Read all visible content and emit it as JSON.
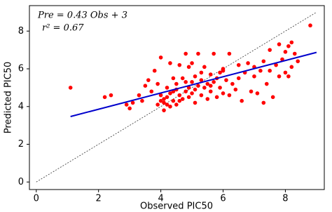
{
  "chart_data": {
    "type": "scatter",
    "xlabel": "Observed PIC50",
    "ylabel": "Predicted PIC50",
    "annotations": [
      "Pre = 0.43 Obs + 3",
      "r² = 0.67"
    ],
    "xlim": [
      -0.22,
      9.25
    ],
    "ylim": [
      -0.4,
      9.35
    ],
    "xticks": [
      0,
      2,
      4,
      6,
      8
    ],
    "yticks": [
      0,
      2,
      4,
      6,
      8
    ],
    "grid": false,
    "points": {
      "color": "#ff0000",
      "x": [
        1.1,
        2.2,
        2.4,
        2.9,
        3.0,
        3.1,
        3.3,
        3.4,
        3.5,
        3.6,
        3.7,
        3.8,
        3.9,
        4.0,
        4.0,
        4.1,
        4.1,
        4.2,
        4.2,
        4.3,
        4.3,
        4.4,
        4.4,
        4.5,
        4.5,
        4.6,
        4.6,
        4.7,
        4.7,
        4.8,
        4.8,
        4.9,
        4.9,
        5.0,
        5.0,
        5.0,
        5.1,
        5.1,
        5.2,
        5.2,
        5.3,
        5.3,
        5.4,
        5.4,
        5.5,
        5.5,
        5.6,
        5.6,
        5.7,
        5.8,
        5.8,
        5.9,
        5.9,
        6.0,
        6.0,
        6.0,
        6.1,
        6.2,
        6.2,
        6.3,
        6.4,
        6.5,
        6.5,
        6.6,
        6.7,
        6.8,
        6.9,
        7.0,
        7.0,
        7.1,
        7.2,
        7.3,
        7.3,
        7.4,
        7.5,
        7.5,
        7.6,
        7.7,
        7.8,
        7.8,
        7.9,
        8.0,
        8.0,
        8.1,
        8.1,
        8.2,
        8.2,
        8.3,
        8.4,
        8.8,
        4.1,
        4.2,
        4.3,
        4.5,
        4.6,
        4.8,
        5.1,
        5.3,
        5.6,
        4.4,
        4.9,
        5.7,
        3.9,
        4.0
      ],
      "y": [
        5.0,
        4.5,
        4.6,
        4.1,
        3.9,
        4.2,
        4.6,
        4.3,
        5.1,
        5.4,
        4.8,
        5.9,
        4.1,
        4.3,
        4.6,
        3.8,
        4.2,
        4.5,
        5.0,
        4.0,
        6.3,
        4.3,
        4.8,
        5.2,
        4.1,
        6.2,
        4.6,
        4.4,
        5.5,
        6.8,
        4.8,
        4.5,
        5.0,
        6.3,
        4.7,
        5.3,
        4.2,
        4.9,
        6.8,
        5.1,
        4.6,
        5.4,
        5.0,
        6.1,
        4.4,
        5.2,
        5.7,
        4.8,
        5.3,
        5.5,
        4.5,
        5.0,
        5.8,
        5.9,
        6.0,
        4.7,
        5.4,
        4.6,
        6.8,
        5.2,
        4.9,
        5.5,
        6.2,
        4.3,
        5.8,
        6.3,
        4.8,
        5.6,
        6.1,
        4.7,
        5.9,
        4.2,
        6.4,
        5.2,
        5.9,
        7.0,
        4.5,
        6.2,
        5.6,
        7.3,
        6.5,
        6.9,
        5.8,
        5.6,
        7.2,
        6.1,
        7.4,
        6.8,
        6.4,
        8.3,
        4.4,
        4.1,
        4.7,
        4.9,
        4.3,
        5.3,
        5.6,
        5.8,
        5.1,
        5.5,
        6.1,
        6.8,
        5.2,
        6.6
      ]
    },
    "fit_line": {
      "color": "#0000cc",
      "x": [
        1.1,
        9.0
      ],
      "y": [
        3.47,
        6.87
      ]
    },
    "identity_line": {
      "color": "#333333",
      "x": [
        0,
        9
      ],
      "y": [
        0,
        9
      ]
    }
  }
}
